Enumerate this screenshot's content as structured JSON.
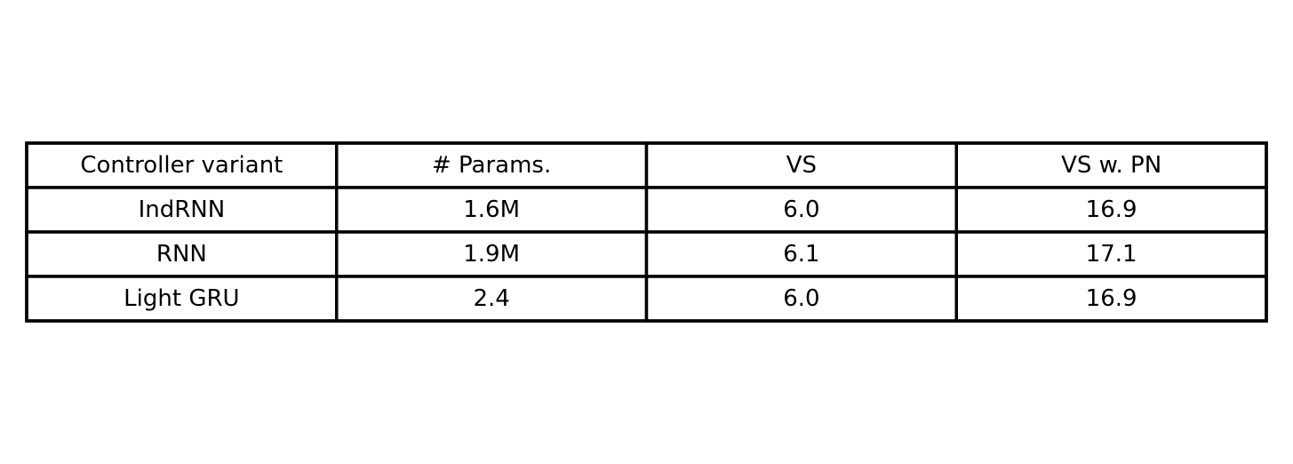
{
  "chart_data": {
    "type": "table",
    "columns": [
      "Controller variant",
      "# Params.",
      "VS",
      "VS w. PN"
    ],
    "rows": [
      [
        "IndRNN",
        "1.6M",
        "6.0",
        "16.9"
      ],
      [
        "RNN",
        "1.9M",
        "6.1",
        "17.1"
      ],
      [
        "Light GRU",
        "2.4",
        "6.0",
        "16.9"
      ]
    ],
    "grid": true
  },
  "colors": {
    "border": "#000000",
    "text": "#000000",
    "background": "#ffffff"
  }
}
